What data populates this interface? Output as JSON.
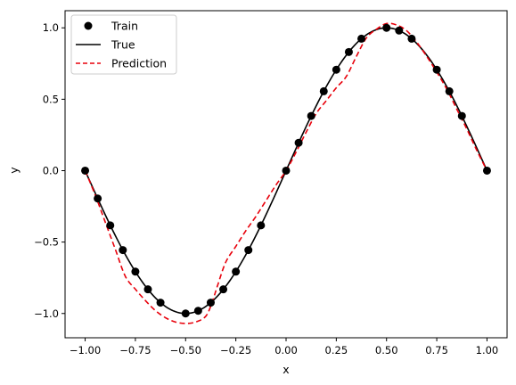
{
  "chart_data": {
    "type": "line",
    "xlabel": "x",
    "ylabel": "y",
    "xlim": [
      -1.1,
      1.1
    ],
    "ylim": [
      -1.17,
      1.12
    ],
    "xticks": [
      -1.0,
      -0.75,
      -0.5,
      -0.25,
      0.0,
      0.25,
      0.5,
      0.75,
      1.0
    ],
    "xtick_labels": [
      "−1.00",
      "−0.75",
      "−0.50",
      "−0.25",
      "0.00",
      "0.25",
      "0.50",
      "0.75",
      "1.00"
    ],
    "yticks": [
      -1.0,
      -0.5,
      0.0,
      0.5,
      1.0
    ],
    "ytick_labels": [
      "−1.0",
      "−0.5",
      "0.0",
      "0.5",
      "1.0"
    ],
    "grid": false,
    "legend_position": "top-left",
    "series": [
      {
        "name": "Train",
        "style": "markers",
        "color": "#000000",
        "x": [
          -1.0,
          -0.9375,
          -0.875,
          -0.8125,
          -0.75,
          -0.6875,
          -0.625,
          -0.5,
          -0.4375,
          -0.375,
          -0.3125,
          -0.25,
          -0.1875,
          -0.125,
          0.0,
          0.0625,
          0.125,
          0.1875,
          0.25,
          0.3125,
          0.375,
          0.5,
          0.5625,
          0.625,
          0.75,
          0.8125,
          0.875,
          1.0
        ],
        "y": [
          0.0,
          -0.195,
          -0.383,
          -0.556,
          -0.707,
          -0.831,
          -0.924,
          -1.0,
          -0.981,
          -0.924,
          -0.831,
          -0.707,
          -0.556,
          -0.383,
          0.0,
          0.195,
          0.383,
          0.556,
          0.707,
          0.831,
          0.924,
          1.0,
          0.981,
          0.924,
          0.707,
          0.556,
          0.383,
          0.0
        ]
      },
      {
        "name": "True",
        "style": "solid",
        "color": "#000000",
        "function": "sin(pi*x)",
        "x": [
          -1.0,
          -0.9,
          -0.8,
          -0.7,
          -0.6,
          -0.5,
          -0.4,
          -0.3,
          -0.2,
          -0.1,
          0.0,
          0.1,
          0.2,
          0.3,
          0.4,
          0.5,
          0.6,
          0.7,
          0.8,
          0.9,
          1.0
        ],
        "y": [
          0.0,
          -0.309,
          -0.588,
          -0.809,
          -0.951,
          -1.0,
          -0.951,
          -0.809,
          -0.588,
          -0.309,
          0.0,
          0.309,
          0.588,
          0.809,
          0.951,
          1.0,
          0.951,
          0.809,
          0.588,
          0.309,
          0.0
        ]
      },
      {
        "name": "Prediction",
        "style": "dashed",
        "color": "#e8000b",
        "x": [
          -1.0,
          -0.95,
          -0.9,
          -0.85,
          -0.8,
          -0.75,
          -0.7,
          -0.65,
          -0.6,
          -0.55,
          -0.5,
          -0.45,
          -0.4,
          -0.37,
          -0.34,
          -0.3,
          -0.25,
          -0.2,
          -0.15,
          -0.1,
          -0.05,
          0.0,
          0.05,
          0.1,
          0.15,
          0.2,
          0.25,
          0.3,
          0.35,
          0.4,
          0.45,
          0.5,
          0.55,
          0.6,
          0.65,
          0.7,
          0.75,
          0.8,
          0.85,
          0.9,
          0.95,
          1.0
        ],
        "y": [
          0.0,
          -0.17,
          -0.36,
          -0.55,
          -0.74,
          -0.83,
          -0.91,
          -0.98,
          -1.03,
          -1.06,
          -1.07,
          -1.06,
          -1.02,
          -0.93,
          -0.8,
          -0.64,
          -0.53,
          -0.42,
          -0.32,
          -0.21,
          -0.1,
          0.0,
          0.13,
          0.27,
          0.4,
          0.49,
          0.58,
          0.66,
          0.8,
          0.93,
          0.99,
          1.03,
          1.02,
          0.98,
          0.9,
          0.8,
          0.69,
          0.57,
          0.43,
          0.29,
          0.14,
          0.0
        ]
      }
    ]
  }
}
